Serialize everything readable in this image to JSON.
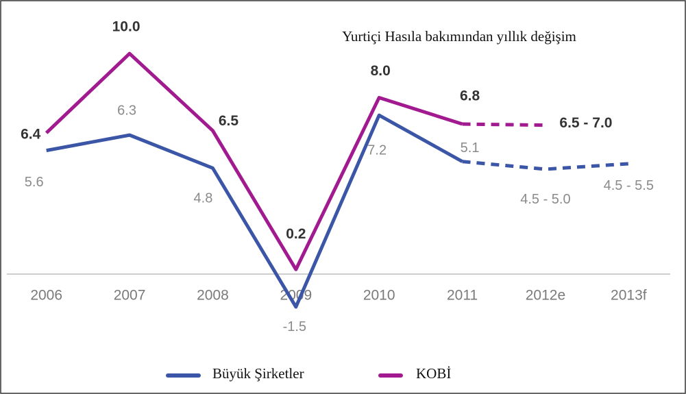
{
  "chart_data": {
    "type": "line",
    "title": "Yurtiçi Hasıla bakımından yıllık değişim",
    "categories": [
      "2006",
      "2007",
      "2008",
      "2009",
      "2010",
      "2011",
      "2012e",
      "2013f"
    ],
    "ylim": [
      -2,
      11
    ],
    "dashed_from_index": 5,
    "legend": "bottom",
    "series": [
      {
        "name": "Büyük Şirketler",
        "color": "#3b56a6",
        "values": [
          5.6,
          6.3,
          4.8,
          -1.5,
          7.2,
          5.1,
          4.75,
          5.0
        ],
        "value_labels": [
          "5.6",
          "6.3",
          "4.8",
          "-1.5",
          "7.2",
          "5.1",
          "4.5 - 5.0",
          "4.5 - 5.5"
        ]
      },
      {
        "name": "KOBİ",
        "color": "#a21a90",
        "values": [
          6.4,
          10.0,
          6.5,
          0.2,
          8.0,
          6.8,
          6.75,
          null
        ],
        "value_labels": [
          "6.4",
          "10.0",
          "6.5",
          "0.2",
          "8.0",
          "6.8",
          "6.5 - 7.0",
          null
        ]
      }
    ]
  }
}
